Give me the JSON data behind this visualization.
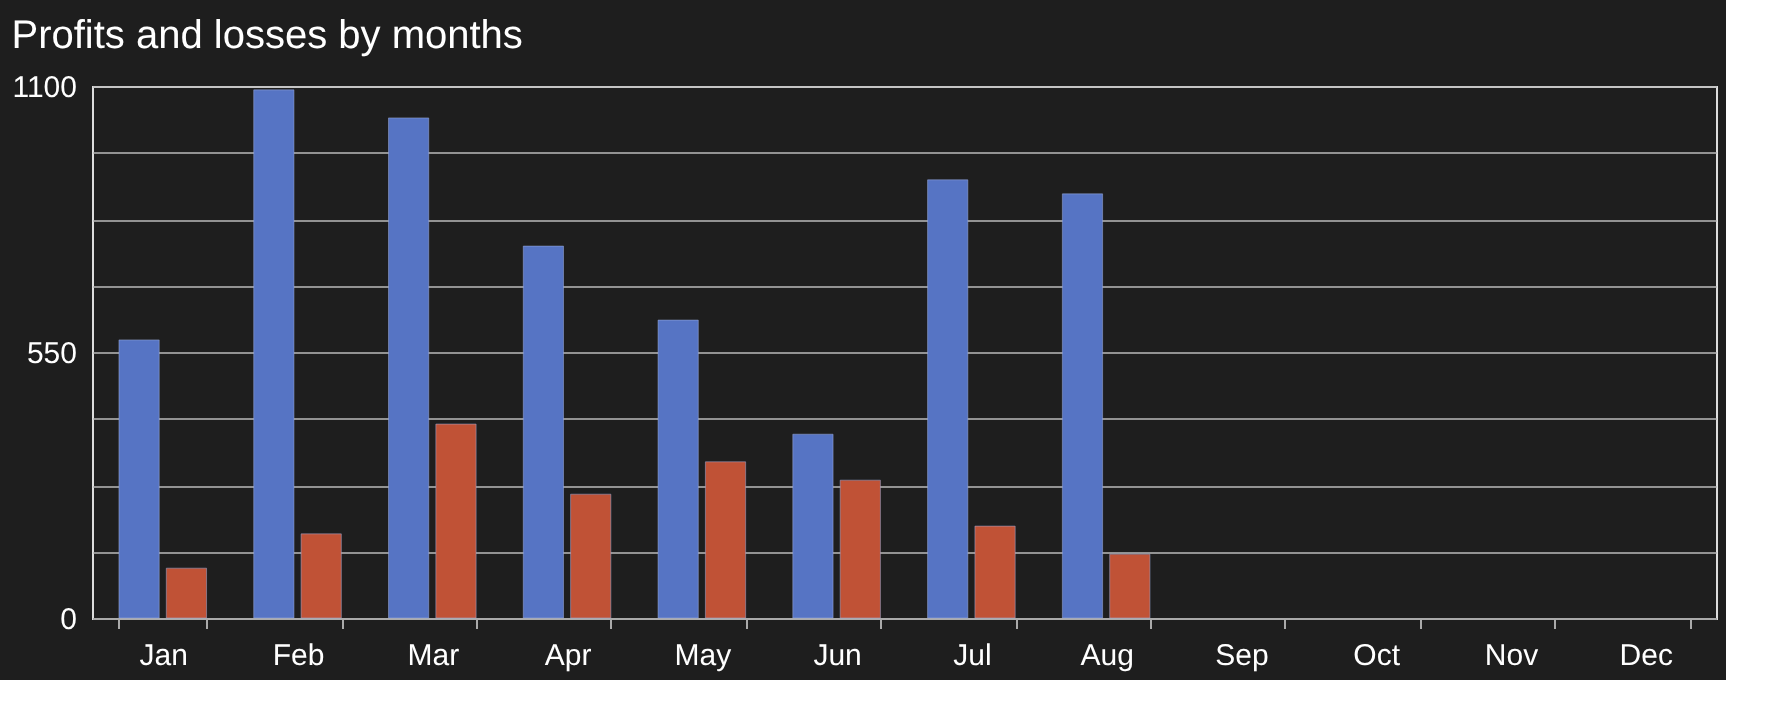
{
  "chart_data": {
    "type": "bar",
    "title": "Profits and losses by months",
    "categories": [
      "Jan",
      "Feb",
      "Mar",
      "Apr",
      "May",
      "Jun",
      "Jul",
      "Aug",
      "Sep",
      "Oct",
      "Nov",
      "Dec"
    ],
    "series": [
      {
        "color": "#5674c4",
        "values": [
          575,
          1092,
          1034,
          769,
          616,
          380,
          906,
          877,
          null,
          null,
          null,
          null
        ]
      },
      {
        "color": "#c05236",
        "values": [
          103,
          174,
          401,
          256,
          323,
          285,
          190,
          132,
          null,
          null,
          null,
          null
        ]
      }
    ],
    "ylim": [
      0,
      1100
    ],
    "yticks": [
      0,
      {
        "value": 137.5,
        "label": null
      },
      {
        "value": 275,
        "label": null
      },
      {
        "value": 412.5,
        "label": null
      },
      550,
      {
        "value": 687.5,
        "label": null
      },
      {
        "value": 825,
        "label": null
      },
      {
        "value": 962.5,
        "label": null
      },
      1100
    ],
    "grid": "y",
    "legend": false
  }
}
